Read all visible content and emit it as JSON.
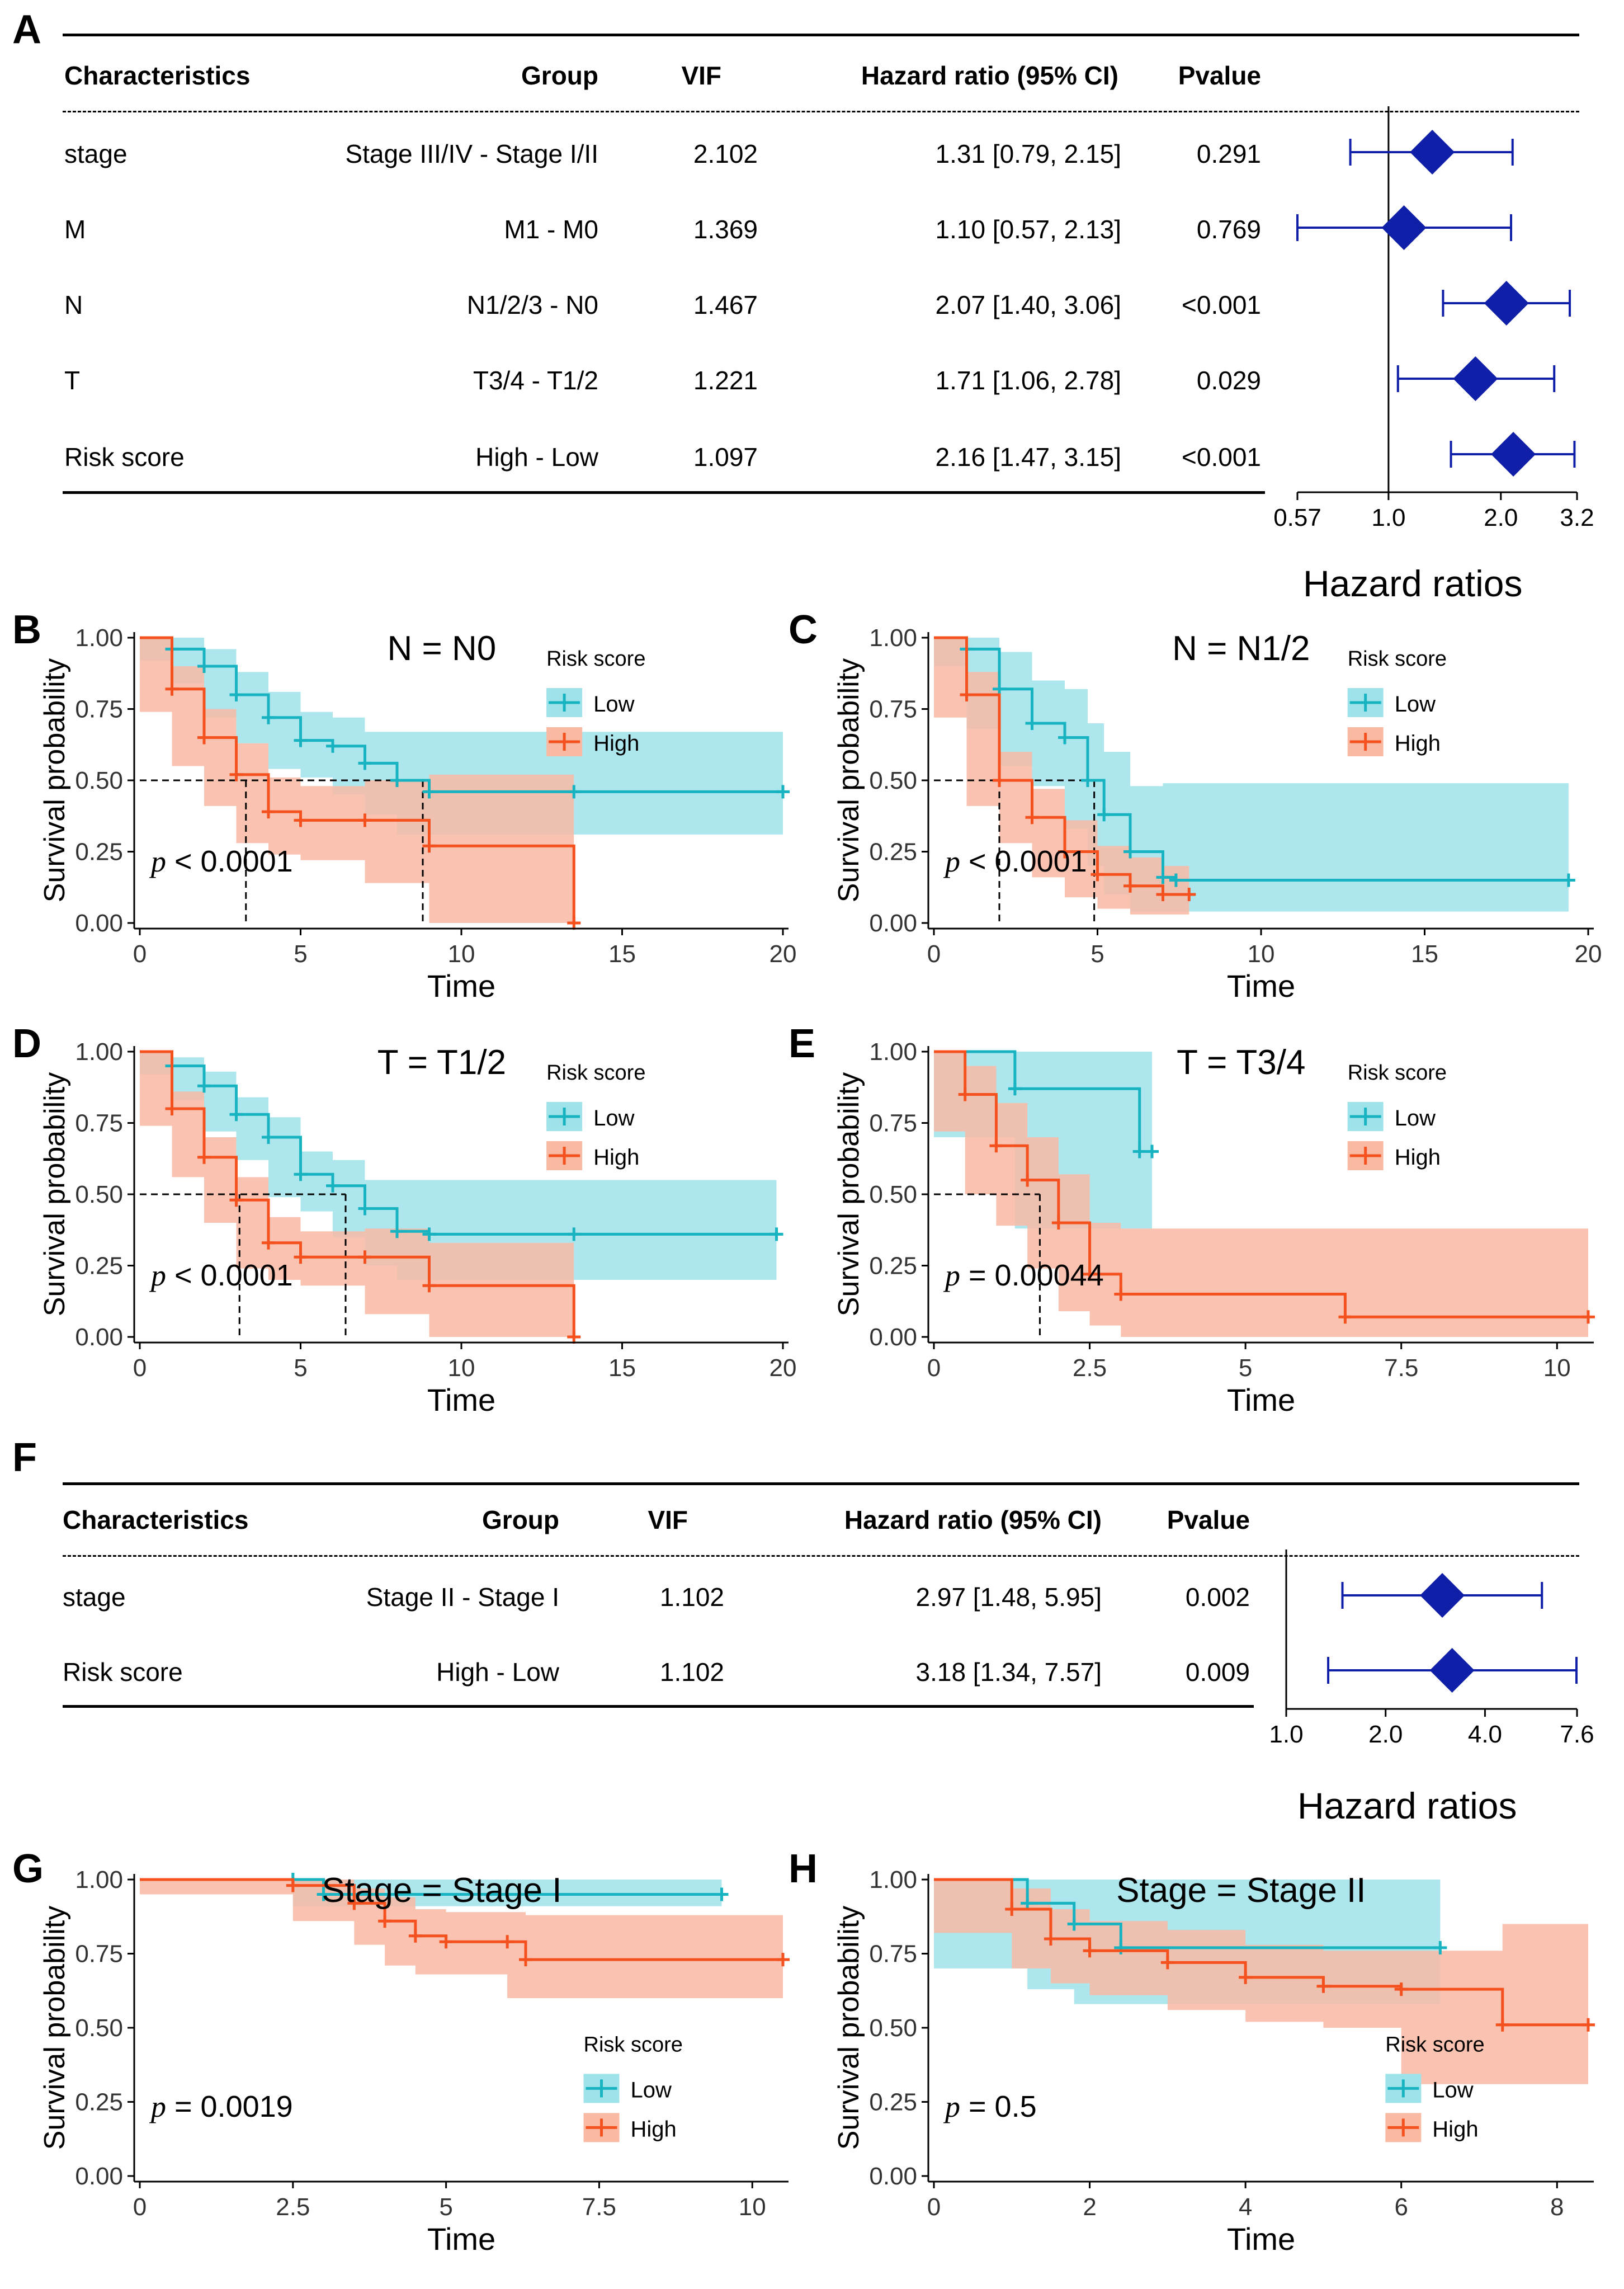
{
  "colors": {
    "low": "#17b3c0",
    "low_band": "#9fe3ea",
    "high": "#f4511e",
    "high_band": "#f9b9a3",
    "forest": "#0f1fa8"
  },
  "panel_letters": [
    "A",
    "B",
    "C",
    "D",
    "E",
    "F",
    "G",
    "H"
  ],
  "table_A": {
    "headers": {
      "characteristics": "Characteristics",
      "group": "Group",
      "vif": "VIF",
      "hr": "Hazard ratio (95% CI)",
      "pvalue": "Pvalue"
    },
    "rows": [
      {
        "char": "stage",
        "group": "Stage III/IV - Stage I/II",
        "vif": "2.102",
        "hr_text": "1.31 [0.79, 2.15]",
        "p": "0.291",
        "hr": 1.31,
        "lo": 0.79,
        "hi": 2.15
      },
      {
        "char": "M",
        "group": "M1 - M0",
        "vif": "1.369",
        "hr_text": "1.10 [0.57, 2.13]",
        "p": "0.769",
        "hr": 1.1,
        "lo": 0.57,
        "hi": 2.13
      },
      {
        "char": "N",
        "group": "N1/2/3 - N0",
        "vif": "1.467",
        "hr_text": "2.07 [1.40, 3.06]",
        "p": "<0.001",
        "hr": 2.07,
        "lo": 1.4,
        "hi": 3.06
      },
      {
        "char": "T",
        "group": "T3/4 - T1/2",
        "vif": "1.221",
        "hr_text": "1.71 [1.06, 2.78]",
        "p": "0.029",
        "hr": 1.71,
        "lo": 1.06,
        "hi": 2.78
      },
      {
        "char": "Risk score",
        "group": "High - Low",
        "vif": "1.097",
        "hr_text": "2.16 [1.47, 3.15]",
        "p": "<0.001",
        "hr": 2.16,
        "lo": 1.47,
        "hi": 3.15
      }
    ],
    "axis_ticks": [
      "0.57",
      "1.0",
      "2.0",
      "3.2"
    ],
    "axis_label": "Hazard ratios"
  },
  "table_F": {
    "headers": {
      "characteristics": "Characteristics",
      "group": "Group",
      "vif": "VIF",
      "hr": "Hazard ratio (95% CI)",
      "pvalue": "Pvalue"
    },
    "rows": [
      {
        "char": "stage",
        "group": "Stage II - Stage I",
        "vif": "1.102",
        "hr_text": "2.97 [1.48, 5.95]",
        "p": "0.002",
        "hr": 2.97,
        "lo": 1.48,
        "hi": 5.95
      },
      {
        "char": "Risk score",
        "group": "High - Low",
        "vif": "1.102",
        "hr_text": "3.18 [1.34, 7.57]",
        "p": "0.009",
        "hr": 3.18,
        "lo": 1.34,
        "hi": 7.57
      }
    ],
    "axis_ticks": [
      "1.0",
      "2.0",
      "4.0",
      "7.6"
    ],
    "axis_label": "Hazard ratios"
  },
  "chart_data": [
    {
      "id": "B",
      "type": "line",
      "title": "N = N0",
      "xlabel": "Time",
      "ylabel": "Survival probability",
      "xlim": [
        0,
        20
      ],
      "xticks": [
        "0",
        "5",
        "10",
        "15",
        "20"
      ],
      "ylim": [
        0,
        1
      ],
      "yticks": [
        "0.00",
        "0.25",
        "0.50",
        "0.75",
        "1.00"
      ],
      "legend_title": "Risk score",
      "legend": [
        "Low",
        "High"
      ],
      "pvalue_label": "p",
      "pvalue_text": "< 0.0001",
      "median": [
        3.3,
        8.8
      ],
      "series": [
        {
          "name": "Low",
          "x": [
            0,
            1,
            2,
            3,
            4,
            5,
            6,
            7,
            8,
            9,
            13.5,
            20
          ],
          "y": [
            1.0,
            0.96,
            0.9,
            0.8,
            0.72,
            0.64,
            0.62,
            0.56,
            0.5,
            0.46,
            0.46,
            0.46
          ],
          "upper": [
            1.0,
            1.0,
            0.96,
            0.88,
            0.81,
            0.74,
            0.72,
            0.67,
            0.67,
            0.67,
            0.67,
            0.67
          ],
          "lower": [
            1.0,
            0.92,
            0.84,
            0.72,
            0.63,
            0.54,
            0.51,
            0.45,
            0.38,
            0.31,
            0.31,
            0.31
          ]
        },
        {
          "name": "High",
          "x": [
            0,
            1,
            2,
            3,
            4,
            5,
            7,
            9,
            13.5
          ],
          "y": [
            1.0,
            0.82,
            0.65,
            0.52,
            0.39,
            0.36,
            0.36,
            0.27,
            0.0
          ],
          "upper": [
            1.0,
            0.9,
            0.75,
            0.63,
            0.51,
            0.48,
            0.5,
            0.52,
            0.52
          ],
          "lower": [
            1.0,
            0.74,
            0.55,
            0.41,
            0.28,
            0.24,
            0.22,
            0.14,
            0.0
          ]
        }
      ]
    },
    {
      "id": "C",
      "type": "line",
      "title": "N = N1/2",
      "xlabel": "Time",
      "ylabel": "Survival probability",
      "xlim": [
        0,
        20
      ],
      "xticks": [
        "0",
        "5",
        "10",
        "15",
        "20"
      ],
      "ylim": [
        0,
        1
      ],
      "yticks": [
        "0.00",
        "0.25",
        "0.50",
        "0.75",
        "1.00"
      ],
      "legend_title": "Risk score",
      "legend": [
        "Low",
        "High"
      ],
      "pvalue_label": "p",
      "pvalue_text": "< 0.0001",
      "median": [
        2.0,
        4.9
      ],
      "series": [
        {
          "name": "Low",
          "x": [
            0,
            1,
            2,
            3,
            4,
            4.7,
            5.2,
            6,
            7,
            7.4,
            19.4
          ],
          "y": [
            1.0,
            0.96,
            0.82,
            0.7,
            0.65,
            0.5,
            0.38,
            0.25,
            0.16,
            0.15,
            0.15
          ],
          "upper": [
            1.0,
            1.0,
            0.95,
            0.85,
            0.82,
            0.7,
            0.6,
            0.48,
            0.49,
            0.49,
            0.49
          ],
          "lower": [
            1.0,
            0.9,
            0.68,
            0.55,
            0.48,
            0.33,
            0.2,
            0.1,
            0.04,
            0.04,
            0.04
          ]
        },
        {
          "name": "High",
          "x": [
            0,
            1,
            2,
            3,
            4,
            5,
            6,
            7,
            7.8
          ],
          "y": [
            1.0,
            0.8,
            0.5,
            0.37,
            0.25,
            0.17,
            0.13,
            0.1,
            0.1
          ],
          "upper": [
            1.0,
            0.88,
            0.6,
            0.47,
            0.36,
            0.27,
            0.23,
            0.2,
            0.2
          ],
          "lower": [
            1.0,
            0.72,
            0.41,
            0.28,
            0.16,
            0.09,
            0.05,
            0.03,
            0.03
          ]
        }
      ]
    },
    {
      "id": "D",
      "type": "line",
      "title": "T = T1/2",
      "xlabel": "Time",
      "ylabel": "Survival probability",
      "xlim": [
        0,
        20
      ],
      "xticks": [
        "0",
        "5",
        "10",
        "15",
        "20"
      ],
      "ylim": [
        0,
        1
      ],
      "yticks": [
        "0.00",
        "0.25",
        "0.50",
        "0.75",
        "1.00"
      ],
      "legend_title": "Risk score",
      "legend": [
        "Low",
        "High"
      ],
      "pvalue_label": "p",
      "pvalue_text": "< 0.0001",
      "median": [
        3.1,
        6.4
      ],
      "series": [
        {
          "name": "Low",
          "x": [
            0,
            1,
            2,
            3,
            4,
            5,
            6,
            7,
            8,
            9,
            13.5,
            19.8
          ],
          "y": [
            1.0,
            0.95,
            0.88,
            0.78,
            0.7,
            0.57,
            0.53,
            0.45,
            0.37,
            0.36,
            0.36,
            0.36
          ],
          "upper": [
            1.0,
            0.98,
            0.93,
            0.84,
            0.77,
            0.65,
            0.62,
            0.55,
            0.55,
            0.55,
            0.55,
            0.55
          ],
          "lower": [
            1.0,
            0.92,
            0.83,
            0.72,
            0.62,
            0.49,
            0.44,
            0.35,
            0.25,
            0.2,
            0.2,
            0.2
          ]
        },
        {
          "name": "High",
          "x": [
            0,
            1,
            2,
            3,
            4,
            5,
            7,
            9,
            13.5
          ],
          "y": [
            1.0,
            0.8,
            0.63,
            0.48,
            0.33,
            0.28,
            0.28,
            0.18,
            0.0
          ],
          "upper": [
            1.0,
            0.86,
            0.7,
            0.56,
            0.42,
            0.37,
            0.38,
            0.33,
            0.33
          ],
          "lower": [
            1.0,
            0.74,
            0.56,
            0.4,
            0.24,
            0.2,
            0.18,
            0.08,
            0.0
          ]
        }
      ]
    },
    {
      "id": "E",
      "type": "line",
      "title": "T = T3/4",
      "xlabel": "Time",
      "ylabel": "Survival probability",
      "xlim": [
        0,
        10.5
      ],
      "xticks": [
        "0",
        "2.5",
        "5",
        "7.5",
        "10"
      ],
      "ylim": [
        0,
        1
      ],
      "yticks": [
        "0.00",
        "0.25",
        "0.50",
        "0.75",
        "1.00"
      ],
      "legend_title": "Risk score",
      "legend": [
        "Low",
        "High"
      ],
      "pvalue_label": "p",
      "pvalue_text": "= 0.00044",
      "median": [
        1.7
      ],
      "series": [
        {
          "name": "Low",
          "x": [
            0,
            1.3,
            3.3,
            3.5
          ],
          "y": [
            1.0,
            0.87,
            0.65,
            0.65
          ],
          "upper": [
            1.0,
            1.0,
            1.0,
            1.0
          ],
          "lower": [
            1.0,
            0.7,
            0.38,
            0.38
          ]
        },
        {
          "name": "High",
          "x": [
            0,
            0.5,
            1,
            1.5,
            2,
            2.5,
            3,
            6.6,
            10.5
          ],
          "y": [
            1.0,
            0.85,
            0.67,
            0.55,
            0.4,
            0.22,
            0.15,
            0.07,
            0.07
          ],
          "upper": [
            1.0,
            0.95,
            0.82,
            0.7,
            0.57,
            0.4,
            0.38,
            0.38,
            0.38
          ],
          "lower": [
            1.0,
            0.72,
            0.5,
            0.39,
            0.24,
            0.09,
            0.04,
            0.0,
            0.0
          ]
        }
      ]
    },
    {
      "id": "G",
      "type": "line",
      "title": "Stage = Stage I",
      "xlabel": "Time",
      "ylabel": "Survival probability",
      "xlim": [
        0,
        10.5
      ],
      "xticks": [
        "0",
        "2.5",
        "5",
        "7.5",
        "10"
      ],
      "ylim": [
        0,
        1
      ],
      "yticks": [
        "0.00",
        "0.25",
        "0.50",
        "0.75",
        "1.00"
      ],
      "legend_title": "Risk score",
      "legend": [
        "Low",
        "High"
      ],
      "pvalue_label": "p",
      "pvalue_text": "= 0.0019",
      "median": [],
      "series": [
        {
          "name": "Low",
          "x": [
            0,
            2.5,
            3,
            9.5
          ],
          "y": [
            1.0,
            1.0,
            0.95,
            0.95
          ],
          "upper": [
            1.0,
            1.0,
            1.0,
            1.0
          ],
          "lower": [
            1.0,
            1.0,
            0.91,
            0.91
          ]
        },
        {
          "name": "High",
          "x": [
            0,
            2.5,
            3.5,
            4,
            4.5,
            5,
            6,
            6.3,
            10.5
          ],
          "y": [
            1.0,
            0.98,
            0.92,
            0.86,
            0.81,
            0.79,
            0.79,
            0.73,
            0.73
          ],
          "upper": [
            1.0,
            1.0,
            0.97,
            0.94,
            0.9,
            0.89,
            0.89,
            0.88,
            0.88
          ],
          "lower": [
            1.0,
            0.95,
            0.86,
            0.78,
            0.71,
            0.68,
            0.68,
            0.6,
            0.6
          ]
        }
      ]
    },
    {
      "id": "H",
      "type": "line",
      "title": "Stage = Stage II",
      "xlabel": "Time",
      "ylabel": "Survival probability",
      "xlim": [
        0,
        8.4
      ],
      "xticks": [
        "0",
        "2",
        "4",
        "6",
        "8"
      ],
      "ylim": [
        0,
        1
      ],
      "yticks": [
        "0.00",
        "0.25",
        "0.50",
        "0.75",
        "1.00"
      ],
      "legend_title": "Risk score",
      "legend": [
        "Low",
        "High"
      ],
      "pvalue_label": "p",
      "pvalue_text": "= 0.5",
      "median": [],
      "series": [
        {
          "name": "Low",
          "x": [
            0,
            1.2,
            1.8,
            2.4,
            6.5
          ],
          "y": [
            1.0,
            0.92,
            0.85,
            0.77,
            0.77
          ],
          "upper": [
            1.0,
            1.0,
            1.0,
            1.0,
            1.0
          ],
          "lower": [
            1.0,
            0.7,
            0.63,
            0.58,
            0.58
          ]
        },
        {
          "name": "High",
          "x": [
            0,
            1,
            1.5,
            2,
            3,
            4,
            5,
            6,
            7.3,
            8.4
          ],
          "y": [
            1.0,
            0.9,
            0.8,
            0.76,
            0.72,
            0.67,
            0.64,
            0.63,
            0.51,
            0.51
          ],
          "upper": [
            1.0,
            0.97,
            0.9,
            0.86,
            0.83,
            0.78,
            0.76,
            0.76,
            0.85,
            0.85
          ],
          "lower": [
            1.0,
            0.82,
            0.7,
            0.65,
            0.61,
            0.56,
            0.52,
            0.5,
            0.31,
            0.31
          ]
        }
      ]
    }
  ]
}
